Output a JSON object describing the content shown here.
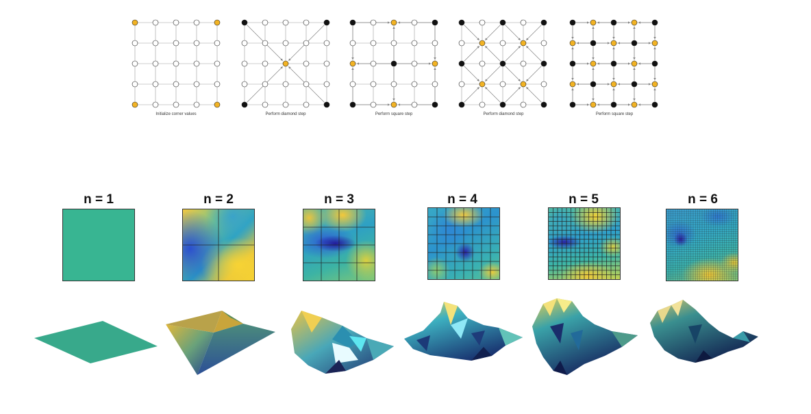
{
  "colors": {
    "node_empty": "#ffffff",
    "node_active": "#f2b324",
    "node_filled": "#111111",
    "edge": "#9a9a9a",
    "arrow": "#808080",
    "viridis_low": "#2f1aa8",
    "viridis_mid": "#2aa6b8",
    "viridis_high": "#f6d233",
    "flat_surface": "#38b592"
  },
  "steps": [
    {
      "caption": "Initialize corner values",
      "mode": "init"
    },
    {
      "caption": "Perform diamond step",
      "mode": "diamond1"
    },
    {
      "caption": "Perform square step",
      "mode": "square1"
    },
    {
      "caption": "Perform diamond step",
      "mode": "diamond2"
    },
    {
      "caption": "Perform square step",
      "mode": "square2"
    }
  ],
  "iterations": [
    {
      "label": "n = 1",
      "grid": 1
    },
    {
      "label": "n = 2",
      "grid": 2
    },
    {
      "label": "n = 3",
      "grid": 4
    },
    {
      "label": "n = 4",
      "grid": 8
    },
    {
      "label": "n = 5",
      "grid": 16
    },
    {
      "label": "n = 6",
      "grid": 32
    }
  ]
}
